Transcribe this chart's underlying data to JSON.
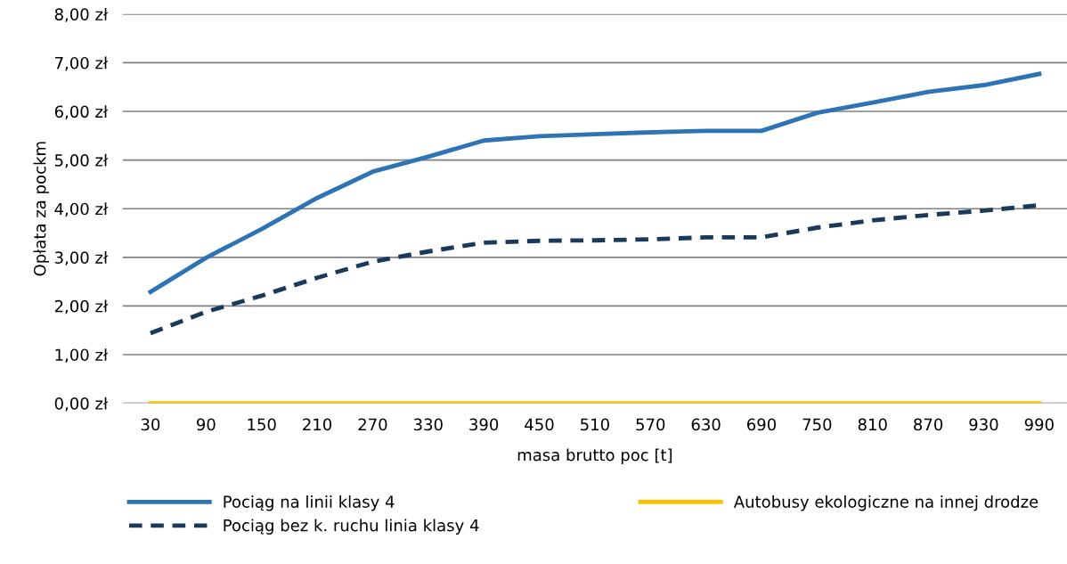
{
  "chart_data": {
    "type": "line",
    "xlabel": "masa brutto poc [t]",
    "ylabel": "Opłata za pockm",
    "categories": [
      "30",
      "90",
      "150",
      "210",
      "270",
      "330",
      "390",
      "450",
      "510",
      "570",
      "630",
      "690",
      "750",
      "810",
      "870",
      "930",
      "990"
    ],
    "series": [
      {
        "name": "Pociąg na linii klasy 4",
        "color": "#2e74b5",
        "line_style": "solid",
        "values": [
          2.29,
          2.99,
          3.58,
          4.22,
          4.76,
          5.07,
          5.4,
          5.49,
          5.53,
          5.57,
          5.6,
          5.6,
          5.97,
          6.18,
          6.4,
          6.54,
          6.77
        ]
      },
      {
        "name": "Pociąg bez k. ruchu linia klasy 4",
        "color": "#1a3a5c",
        "line_style": "dashed",
        "values": [
          1.44,
          1.88,
          2.21,
          2.58,
          2.91,
          3.12,
          3.3,
          3.34,
          3.35,
          3.37,
          3.41,
          3.41,
          3.61,
          3.76,
          3.87,
          3.96,
          4.07
        ]
      },
      {
        "name": "Autobusy ekologiczne na innej drodze",
        "color": "#ffc000",
        "line_style": "solid",
        "values": [
          0,
          0,
          0,
          0,
          0,
          0,
          0,
          0,
          0,
          0,
          0,
          0,
          0,
          0,
          0,
          0,
          0
        ]
      }
    ],
    "ylim": [
      0,
      8
    ],
    "yticks": [
      {
        "value": 0,
        "label": "0,00 zł"
      },
      {
        "value": 1,
        "label": "1,00 zł"
      },
      {
        "value": 2,
        "label": "2,00 zł"
      },
      {
        "value": 3,
        "label": "3,00 zł"
      },
      {
        "value": 4,
        "label": "4,00 zł"
      },
      {
        "value": 5,
        "label": "5,00 zł"
      },
      {
        "value": 6,
        "label": "6,00 zł"
      },
      {
        "value": 7,
        "label": "7,00 zł"
      },
      {
        "value": 8,
        "label": "8,00 zł"
      }
    ],
    "grid": "y",
    "legend": "bottom",
    "marker": "none"
  }
}
